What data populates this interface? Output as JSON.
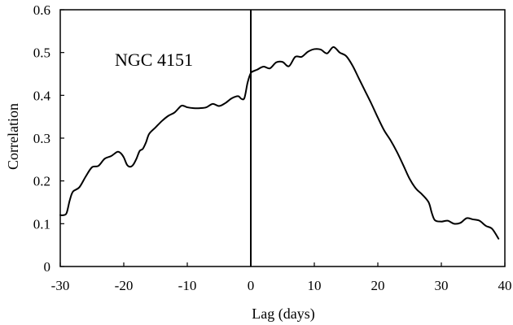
{
  "chart_data": {
    "type": "line",
    "title": "",
    "annotation": "NGC 4151",
    "xlabel": "Lag (days)",
    "ylabel": "Correlation",
    "xlim": [
      -30,
      40
    ],
    "ylim": [
      0,
      0.6
    ],
    "xticks": [
      "-30",
      "-20",
      "-10",
      "0",
      "10",
      "20",
      "30",
      "40"
    ],
    "yticks": [
      "0",
      "0.1",
      "0.2",
      "0.3",
      "0.4",
      "0.5",
      "0.6"
    ],
    "reference_line_x": 0,
    "grid": false,
    "legend": "none",
    "series": [
      {
        "color": "#000000",
        "x": [
          -30,
          -29.5,
          -29,
          -28.5,
          -28,
          -27,
          -26,
          -25,
          -24,
          -23,
          -22,
          -21,
          -20.5,
          -20,
          -19.5,
          -19,
          -18.5,
          -18,
          -17.5,
          -17,
          -16.5,
          -16,
          -15,
          -14,
          -13,
          -12,
          -11,
          -10.5,
          -10,
          -9,
          -8,
          -7,
          -6,
          -5,
          -4,
          -3,
          -2,
          -1.5,
          -1,
          -0.5,
          0,
          0.5,
          1,
          2,
          3,
          4,
          5,
          6,
          7,
          8,
          9,
          10,
          11,
          12,
          13,
          14,
          15,
          16,
          17,
          18,
          19,
          20,
          21,
          22,
          23,
          24,
          25,
          26,
          27,
          28,
          28.5,
          29,
          30,
          31,
          32,
          33,
          34,
          35,
          36,
          37,
          38,
          39
        ],
        "y": [
          0.12,
          0.12,
          0.125,
          0.155,
          0.175,
          0.185,
          0.21,
          0.232,
          0.235,
          0.252,
          0.258,
          0.268,
          0.265,
          0.255,
          0.238,
          0.233,
          0.238,
          0.252,
          0.27,
          0.275,
          0.29,
          0.31,
          0.325,
          0.34,
          0.352,
          0.36,
          0.375,
          0.375,
          0.372,
          0.37,
          0.37,
          0.372,
          0.38,
          0.375,
          0.382,
          0.393,
          0.398,
          0.392,
          0.394,
          0.43,
          0.452,
          0.457,
          0.46,
          0.467,
          0.463,
          0.477,
          0.478,
          0.468,
          0.49,
          0.49,
          0.502,
          0.508,
          0.507,
          0.498,
          0.513,
          0.5,
          0.492,
          0.47,
          0.44,
          0.41,
          0.38,
          0.348,
          0.318,
          0.295,
          0.268,
          0.237,
          0.205,
          0.182,
          0.168,
          0.15,
          0.125,
          0.108,
          0.105,
          0.107,
          0.1,
          0.102,
          0.113,
          0.11,
          0.107,
          0.095,
          0.088,
          0.065
        ]
      }
    ]
  }
}
